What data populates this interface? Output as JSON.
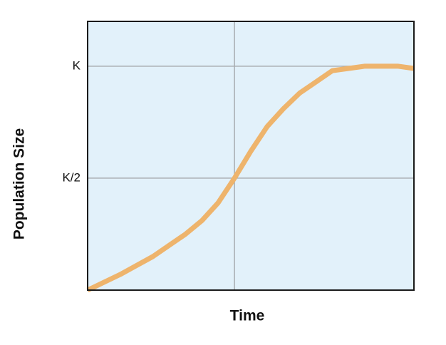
{
  "chart_data": {
    "type": "line",
    "x_label": "Time",
    "y_label": "Population Size",
    "x": [
      0,
      5,
      10,
      15,
      20,
      25,
      30,
      35,
      40,
      45,
      50,
      55,
      60,
      65,
      70,
      75,
      80,
      85,
      90,
      95,
      100
    ],
    "series": [
      {
        "color": "#eeb46c",
        "values": [
          0.0,
          0.035,
          0.07,
          0.11,
          0.15,
          0.2,
          0.25,
          0.31,
          0.39,
          0.5,
          0.62,
          0.73,
          0.81,
          0.88,
          0.93,
          0.98,
          0.99,
          1.0,
          1.0,
          1.0,
          0.99
        ]
      }
    ],
    "xlim": [
      0,
      100
    ],
    "xticks": [
      45
    ],
    "ylim": [
      0,
      1.2
    ],
    "yticks": [
      {
        "value": 0.5,
        "label": "K/2"
      },
      {
        "value": 1,
        "label": "K"
      }
    ],
    "grid": true,
    "background": "#e2f1fa"
  }
}
